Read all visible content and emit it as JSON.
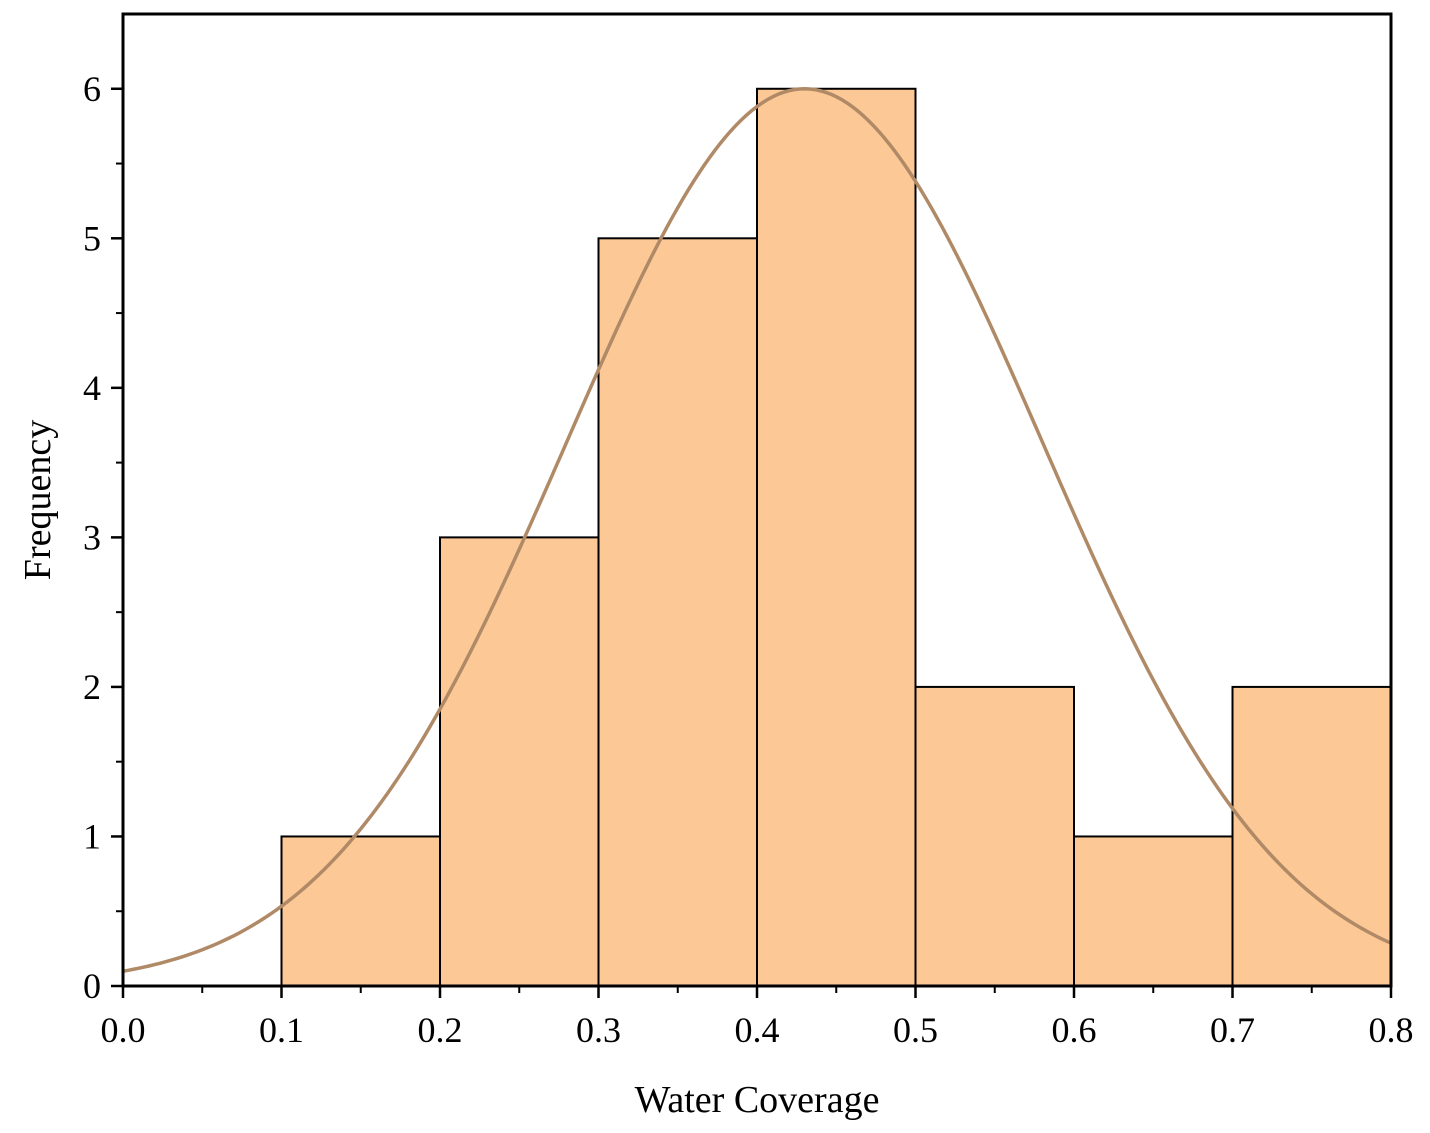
{
  "chart_data": {
    "type": "bar",
    "subtype": "histogram",
    "title": "",
    "xlabel": "Water Coverage",
    "ylabel": "Frequency",
    "xlim": [
      0.0,
      0.8
    ],
    "ylim": [
      0,
      6.5
    ],
    "x_ticks": [
      "0.0",
      "0.1",
      "0.2",
      "0.3",
      "0.4",
      "0.5",
      "0.6",
      "0.7",
      "0.8"
    ],
    "y_ticks": [
      "0",
      "1",
      "2",
      "3",
      "4",
      "5",
      "6"
    ],
    "bins": [
      {
        "start": 0.1,
        "end": 0.2,
        "count": 1
      },
      {
        "start": 0.2,
        "end": 0.3,
        "count": 3
      },
      {
        "start": 0.3,
        "end": 0.4,
        "count": 5
      },
      {
        "start": 0.4,
        "end": 0.5,
        "count": 6
      },
      {
        "start": 0.5,
        "end": 0.6,
        "count": 2
      },
      {
        "start": 0.6,
        "end": 0.7,
        "count": 1
      },
      {
        "start": 0.7,
        "end": 0.8,
        "count": 2
      }
    ],
    "fit_curve": {
      "type": "normal",
      "mean": 0.43,
      "sd": 0.15,
      "peak": 6.0
    },
    "grid": false,
    "legend": "none",
    "colors": {
      "bar_fill": "#fcc896",
      "bar_stroke": "#000000",
      "curve": "#b08a67",
      "axis": "#000000"
    }
  }
}
